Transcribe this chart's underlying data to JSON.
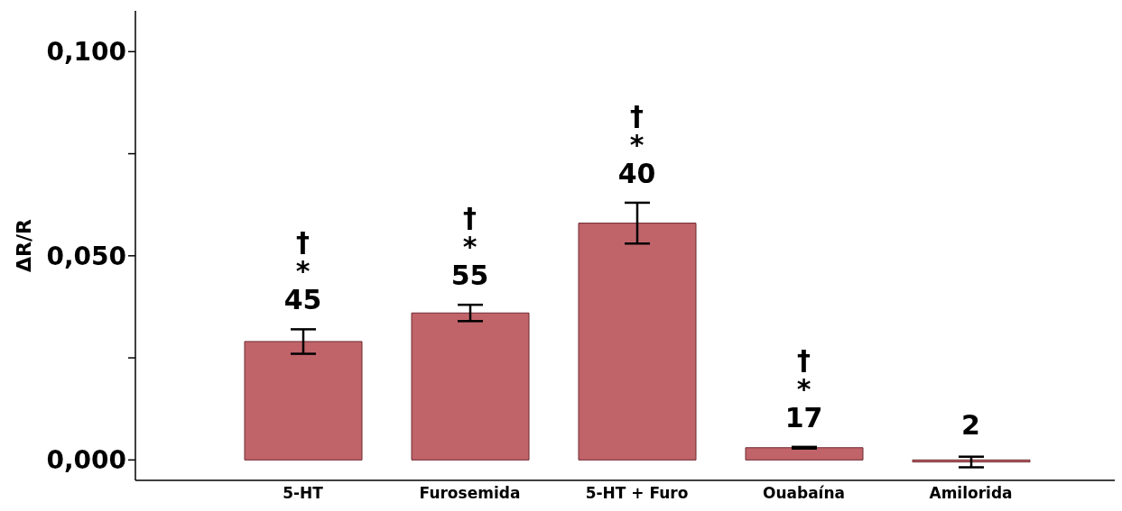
{
  "chart_data": {
    "type": "bar",
    "ylabel": "ΔR/R",
    "categories": [
      "5-HT",
      "Furosemida",
      "5-HT + Furo",
      "Ouabaína",
      "Amilorida"
    ],
    "values": [
      0.029,
      0.036,
      0.058,
      0.003,
      -0.0005
    ],
    "errors": [
      0.003,
      0.002,
      0.005,
      0.0002,
      0.0013
    ],
    "color": "#c0646a",
    "ylim": [
      -0.005,
      0.11
    ],
    "yticks": [
      {
        "value": 0,
        "label": "0,000"
      },
      {
        "value": 0.025,
        "label": null
      },
      {
        "value": 0.05,
        "label": "0,050"
      },
      {
        "value": 0.075,
        "label": null
      },
      {
        "value": 0.1,
        "label": "0,100"
      }
    ],
    "grid": false,
    "legend": false,
    "annotations": [
      "†\n*\n45",
      "†\n*\n55",
      "†\n*\n40",
      "†\n*\n17",
      "2"
    ]
  }
}
